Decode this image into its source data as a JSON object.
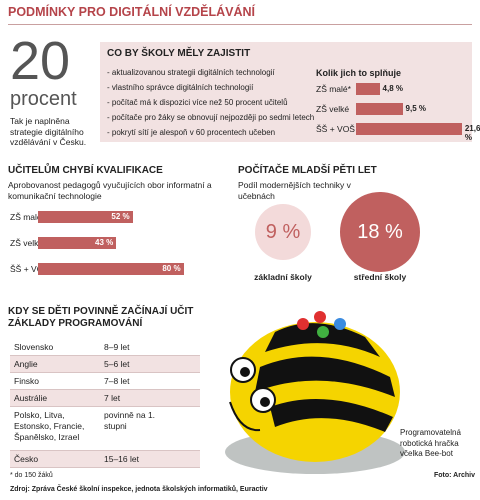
{
  "title": "PODMÍNKY PRO DIGITÁLNÍ VZDĚLÁVÁNÍ",
  "stat": {
    "number": "20",
    "unit": "procent",
    "text": "Tak je naplněna strategie digitálního vzdělávání v Česku."
  },
  "conditions": {
    "title": "CO BY ŠKOLY MĚLY ZAJISTIT",
    "items": [
      "aktualizovanou strategii digitálních technologií",
      "vlastního správce digitálních technologií",
      "počítač má k dispozici více než 50 procent učitelů",
      "počítače pro žáky se obnovují nejpozději po sedmi letech",
      "pokrytí sítí je alespoň v 60 procentech učeben"
    ]
  },
  "chart_data": [
    {
      "type": "bar",
      "title": "Kolik jich to splňuje",
      "categories": [
        "ZŠ malé*",
        "ZŠ velké",
        "ŠŠ + VOŠ"
      ],
      "values": [
        4.8,
        9.5,
        21.6
      ],
      "value_labels": [
        "4,8 %",
        "9,5 %",
        "21,6 %"
      ],
      "color": "#c0605f"
    },
    {
      "type": "bar",
      "title": "UČITELŮM CHYBÍ KVALIFIKACE",
      "subtitle": "Aprobovanost pedagogů vyučujících obor informatní a komunikační technologie",
      "categories": [
        "ZŠ malé*",
        "ZŠ velké",
        "ŠŠ + VOŠ"
      ],
      "values": [
        52,
        43,
        80
      ],
      "value_labels": [
        "52 %",
        "43 %",
        "80 %"
      ],
      "color": "#c0605f"
    },
    {
      "type": "circle",
      "title": "POČÍTAČE MLADŠÍ PĚTI LET",
      "subtitle": "Podíl modernějších techniky v učebnách",
      "categories": [
        "základní školy",
        "střední školy"
      ],
      "values": [
        9,
        18
      ],
      "value_labels": [
        "9 %",
        "18 %"
      ],
      "colors": [
        "#f3dada",
        "#c0605f"
      ],
      "text_colors": [
        "#c0605f",
        "#ffffff"
      ]
    }
  ],
  "table": {
    "title": "KDY SE DĚTI POVINNĚ ZAČÍNAJÍ UČIT ZÁKLADY PROGRAMOVÁNÍ",
    "rows": [
      [
        "Slovensko",
        "8–9 let"
      ],
      [
        "Anglie",
        "5–6 let"
      ],
      [
        "Finsko",
        "7–8 let"
      ],
      [
        "Austrálie",
        "7 let"
      ],
      [
        "Polsko, Litva, Estonsko, Francie, Španělsko, Izrael",
        "povinně na 1. stupni"
      ],
      [
        "Česko",
        "15–16 let"
      ]
    ]
  },
  "footnote": "* do 150 žáků",
  "source": "Zdroj: Zpráva České školní inspekce, jednota školských informatiků, Euractiv",
  "photo_credit": "Foto: Archiv",
  "caption": "Programovatelná robotická hračka včelka Bee-bot"
}
